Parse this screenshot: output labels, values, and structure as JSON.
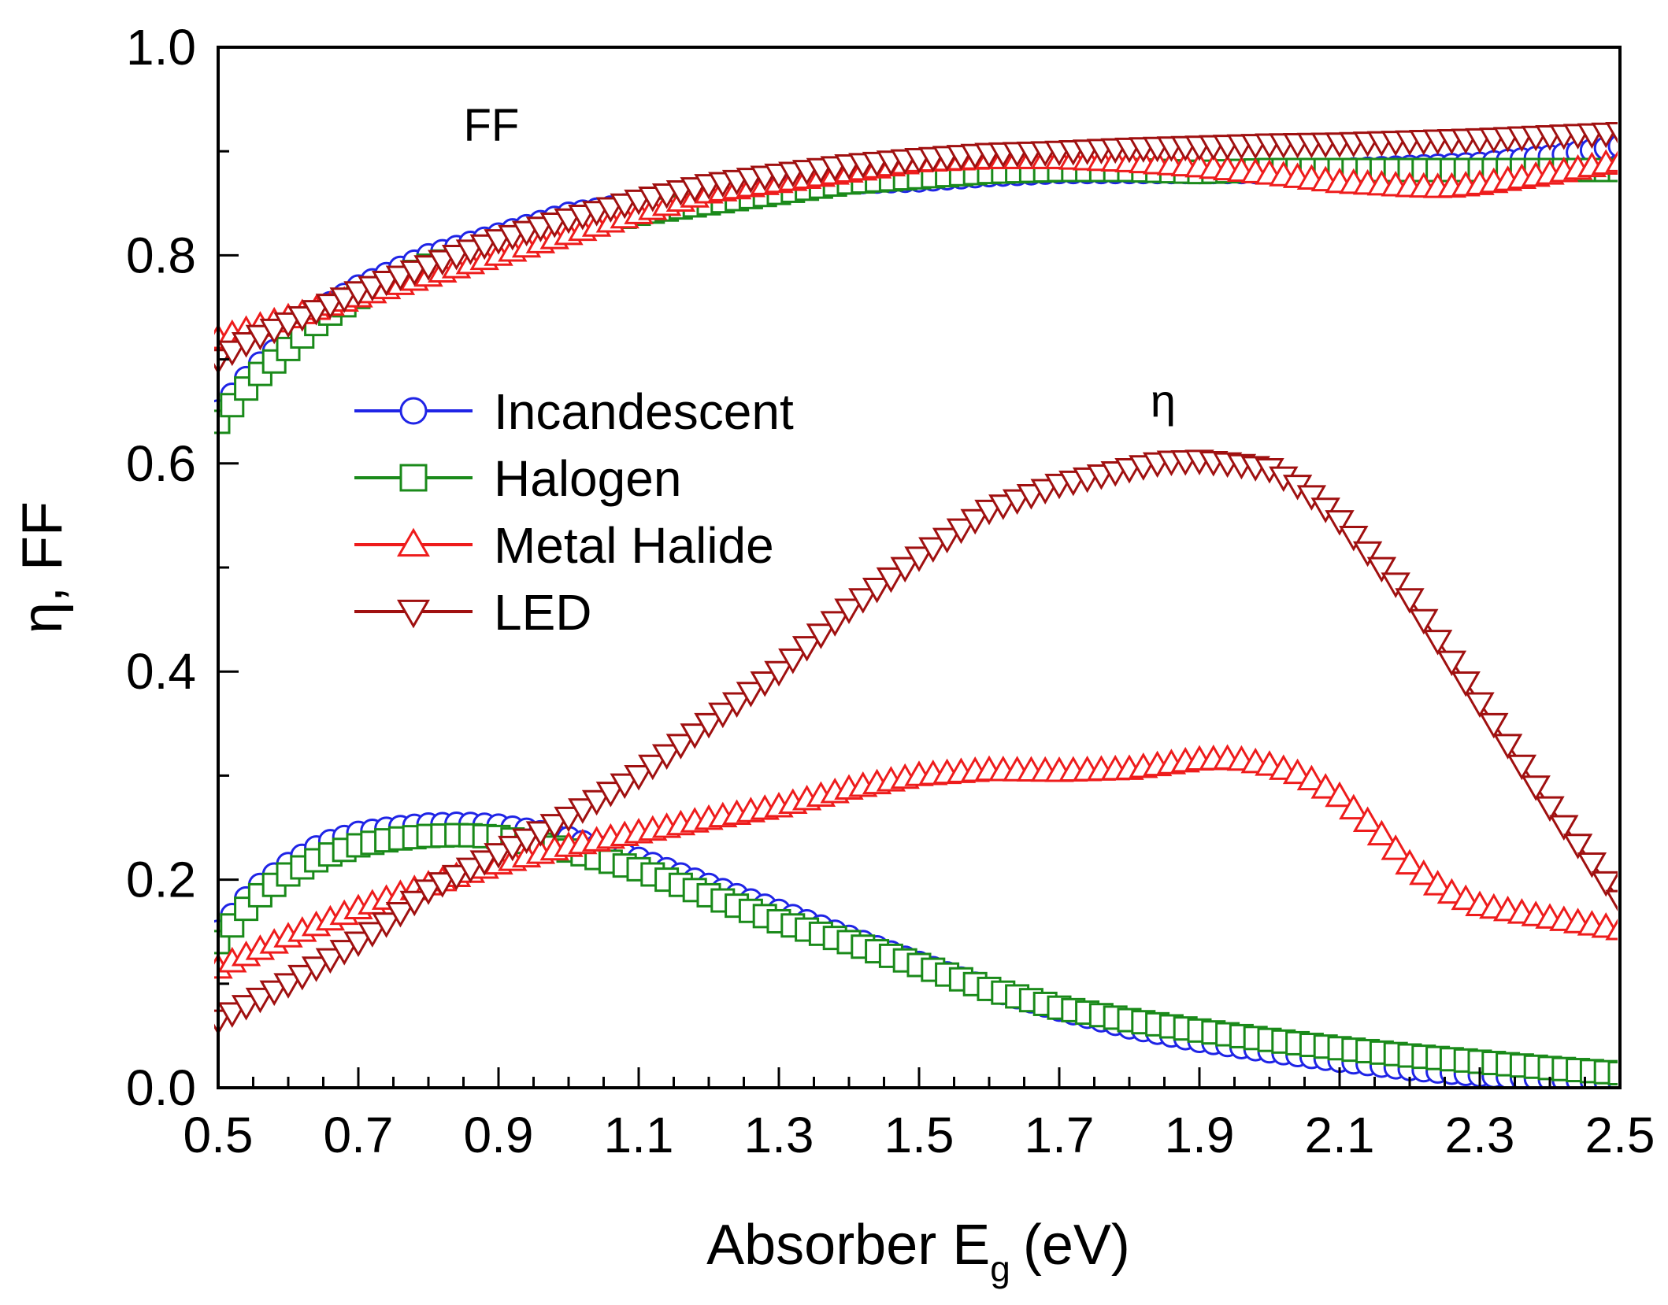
{
  "chart_data": {
    "type": "scatter",
    "xlabel_main": "Absorber E",
    "xlabel_sub": "g",
    "xlabel_unit": "(eV)",
    "ylabel": "η, FF",
    "xlim": [
      0.5,
      2.5
    ],
    "ylim": [
      0.0,
      1.0
    ],
    "x_ticks": [
      0.5,
      0.7,
      0.9,
      1.1,
      1.3,
      1.5,
      1.7,
      1.9,
      2.1,
      2.3,
      2.5
    ],
    "x_tick_labels": [
      "0.5",
      "0.7",
      "0.9",
      "1.1",
      "1.3",
      "1.5",
      "1.7",
      "1.9",
      "2.1",
      "2.3",
      "2.5"
    ],
    "x_minor_step": 0.05,
    "y_ticks": [
      0.0,
      0.2,
      0.4,
      0.6,
      0.8,
      1.0
    ],
    "y_tick_labels": [
      "0.0",
      "0.2",
      "0.4",
      "0.6",
      "0.8",
      "1.0"
    ],
    "y_minor_step": 0.1,
    "grid": false,
    "legend_position": "left-center",
    "annotations": [
      {
        "text": "FF",
        "x": 0.85,
        "y": 0.91
      },
      {
        "text": "η",
        "x": 1.83,
        "y": 0.645
      }
    ],
    "series_step": 0.02,
    "series": [
      {
        "name": "Incandescent",
        "color": "#1f24e6",
        "marker": "circle",
        "ff": {
          "x": [
            0.5,
            0.55,
            0.6,
            0.65,
            0.7,
            0.8,
            0.9,
            1.0,
            1.1,
            1.2,
            1.3,
            1.4,
            1.5,
            1.6,
            1.7,
            1.8,
            1.9,
            2.0,
            2.1,
            2.2,
            2.3,
            2.4,
            2.5
          ],
          "y": [
            0.65,
            0.69,
            0.72,
            0.75,
            0.77,
            0.8,
            0.82,
            0.84,
            0.85,
            0.86,
            0.865,
            0.87,
            0.872,
            0.877,
            0.88,
            0.88,
            0.88,
            0.88,
            0.882,
            0.885,
            0.888,
            0.895,
            0.905
          ]
        },
        "eta": {
          "x": [
            0.5,
            0.55,
            0.6,
            0.65,
            0.7,
            0.75,
            0.8,
            0.85,
            0.9,
            0.95,
            1.0,
            1.1,
            1.2,
            1.3,
            1.4,
            1.5,
            1.6,
            1.7,
            1.8,
            1.9,
            2.0,
            2.1,
            2.2,
            2.3,
            2.4,
            2.5
          ],
          "y": [
            0.15,
            0.19,
            0.215,
            0.235,
            0.245,
            0.25,
            0.253,
            0.254,
            0.252,
            0.247,
            0.24,
            0.22,
            0.195,
            0.17,
            0.145,
            0.12,
            0.095,
            0.075,
            0.058,
            0.045,
            0.035,
            0.026,
            0.018,
            0.012,
            0.008,
            0.005
          ]
        }
      },
      {
        "name": "Halogen",
        "color": "#1a8a1a",
        "marker": "square",
        "ff": {
          "x": [
            0.5,
            0.55,
            0.6,
            0.65,
            0.7,
            0.8,
            0.9,
            1.0,
            1.1,
            1.2,
            1.3,
            1.4,
            1.5,
            1.6,
            1.7,
            1.8,
            1.9,
            2.0,
            2.1,
            2.2,
            2.3,
            2.4,
            2.5
          ],
          "y": [
            0.64,
            0.68,
            0.71,
            0.74,
            0.76,
            0.79,
            0.81,
            0.825,
            0.84,
            0.85,
            0.86,
            0.87,
            0.875,
            0.88,
            0.882,
            0.882,
            0.88,
            0.882,
            0.882,
            0.882,
            0.882,
            0.882,
            0.882
          ]
        },
        "eta": {
          "x": [
            0.5,
            0.55,
            0.6,
            0.65,
            0.7,
            0.75,
            0.8,
            0.85,
            0.9,
            0.95,
            1.0,
            1.1,
            1.2,
            1.3,
            1.4,
            1.5,
            1.6,
            1.7,
            1.8,
            1.9,
            2.0,
            2.1,
            2.2,
            2.3,
            2.4,
            2.5
          ],
          "y": [
            0.14,
            0.18,
            0.205,
            0.222,
            0.233,
            0.239,
            0.242,
            0.243,
            0.241,
            0.235,
            0.228,
            0.21,
            0.185,
            0.16,
            0.14,
            0.118,
            0.095,
            0.077,
            0.065,
            0.055,
            0.046,
            0.038,
            0.031,
            0.025,
            0.019,
            0.014
          ]
        }
      },
      {
        "name": "Metal Halide",
        "color": "#ee1c1c",
        "marker": "triangle-up",
        "ff": {
          "x": [
            0.5,
            0.55,
            0.6,
            0.65,
            0.7,
            0.8,
            0.9,
            1.0,
            1.1,
            1.2,
            1.3,
            1.4,
            1.5,
            1.6,
            1.7,
            1.8,
            1.9,
            2.0,
            2.1,
            2.2,
            2.25,
            2.3,
            2.4,
            2.5
          ],
          "y": [
            0.72,
            0.73,
            0.74,
            0.75,
            0.76,
            0.78,
            0.8,
            0.82,
            0.84,
            0.86,
            0.87,
            0.88,
            0.89,
            0.893,
            0.893,
            0.89,
            0.885,
            0.878,
            0.87,
            0.866,
            0.865,
            0.868,
            0.878,
            0.89
          ]
        },
        "eta": {
          "x": [
            0.5,
            0.6,
            0.7,
            0.8,
            0.9,
            1.0,
            1.1,
            1.2,
            1.3,
            1.4,
            1.5,
            1.6,
            1.7,
            1.8,
            1.9,
            1.95,
            2.0,
            2.05,
            2.1,
            2.15,
            2.2,
            2.25,
            2.3,
            2.4,
            2.5
          ],
          "y": [
            0.115,
            0.145,
            0.172,
            0.195,
            0.215,
            0.232,
            0.245,
            0.258,
            0.27,
            0.287,
            0.3,
            0.305,
            0.304,
            0.306,
            0.315,
            0.316,
            0.31,
            0.3,
            0.28,
            0.25,
            0.215,
            0.19,
            0.175,
            0.163,
            0.152
          ]
        }
      },
      {
        "name": "LED",
        "color": "#a01010",
        "marker": "triangle-down",
        "ff": {
          "x": [
            0.5,
            0.55,
            0.6,
            0.65,
            0.7,
            0.8,
            0.9,
            1.0,
            1.1,
            1.2,
            1.3,
            1.4,
            1.5,
            1.6,
            1.7,
            1.8,
            1.9,
            2.0,
            2.1,
            2.2,
            2.3,
            2.4,
            2.5
          ],
          "y": [
            0.7,
            0.72,
            0.735,
            0.75,
            0.765,
            0.79,
            0.815,
            0.835,
            0.853,
            0.868,
            0.878,
            0.887,
            0.893,
            0.898,
            0.9,
            0.903,
            0.905,
            0.907,
            0.908,
            0.91,
            0.912,
            0.915,
            0.918
          ]
        },
        "eta": {
          "x": [
            0.5,
            0.6,
            0.7,
            0.75,
            0.8,
            0.9,
            1.0,
            1.1,
            1.2,
            1.3,
            1.4,
            1.5,
            1.6,
            1.7,
            1.8,
            1.85,
            1.9,
            1.95,
            2.0,
            2.05,
            2.1,
            2.2,
            2.3,
            2.4,
            2.5
          ],
          "y": [
            0.065,
            0.1,
            0.14,
            0.163,
            0.19,
            0.225,
            0.26,
            0.3,
            0.35,
            0.4,
            0.46,
            0.51,
            0.555,
            0.58,
            0.595,
            0.602,
            0.603,
            0.6,
            0.595,
            0.575,
            0.545,
            0.47,
            0.37,
            0.27,
            0.18
          ]
        }
      }
    ]
  }
}
